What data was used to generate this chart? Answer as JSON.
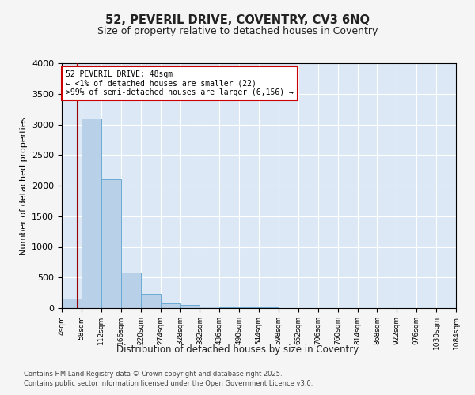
{
  "title1": "52, PEVERIL DRIVE, COVENTRY, CV3 6NQ",
  "title2": "Size of property relative to detached houses in Coventry",
  "xlabel": "Distribution of detached houses by size in Coventry",
  "ylabel": "Number of detached properties",
  "bin_edges": [
    4,
    58,
    112,
    166,
    220,
    274,
    328,
    382,
    436,
    490,
    544,
    598,
    652,
    706,
    760,
    814,
    868,
    922,
    976,
    1030,
    1084
  ],
  "bar_heights": [
    150,
    3100,
    2100,
    580,
    230,
    80,
    55,
    30,
    15,
    10,
    7,
    5,
    4,
    3,
    3,
    2,
    2,
    2,
    1,
    1
  ],
  "bar_color": "#b8d0e8",
  "bar_edge_color": "#6aaad4",
  "background_color": "#dce8f5",
  "property_size": 48,
  "red_line_color": "#990000",
  "annotation_title": "52 PEVERIL DRIVE: 48sqm",
  "annotation_line1": "← <1% of detached houses are smaller (22)",
  "annotation_line2": ">99% of semi-detached houses are larger (6,156) →",
  "annotation_box_color": "#ffffff",
  "annotation_box_edge": "#cc0000",
  "ylim": [
    0,
    4000
  ],
  "yticks": [
    0,
    500,
    1000,
    1500,
    2000,
    2500,
    3000,
    3500,
    4000
  ],
  "footnote1": "Contains HM Land Registry data © Crown copyright and database right 2025.",
  "footnote2": "Contains public sector information licensed under the Open Government Licence v3.0."
}
